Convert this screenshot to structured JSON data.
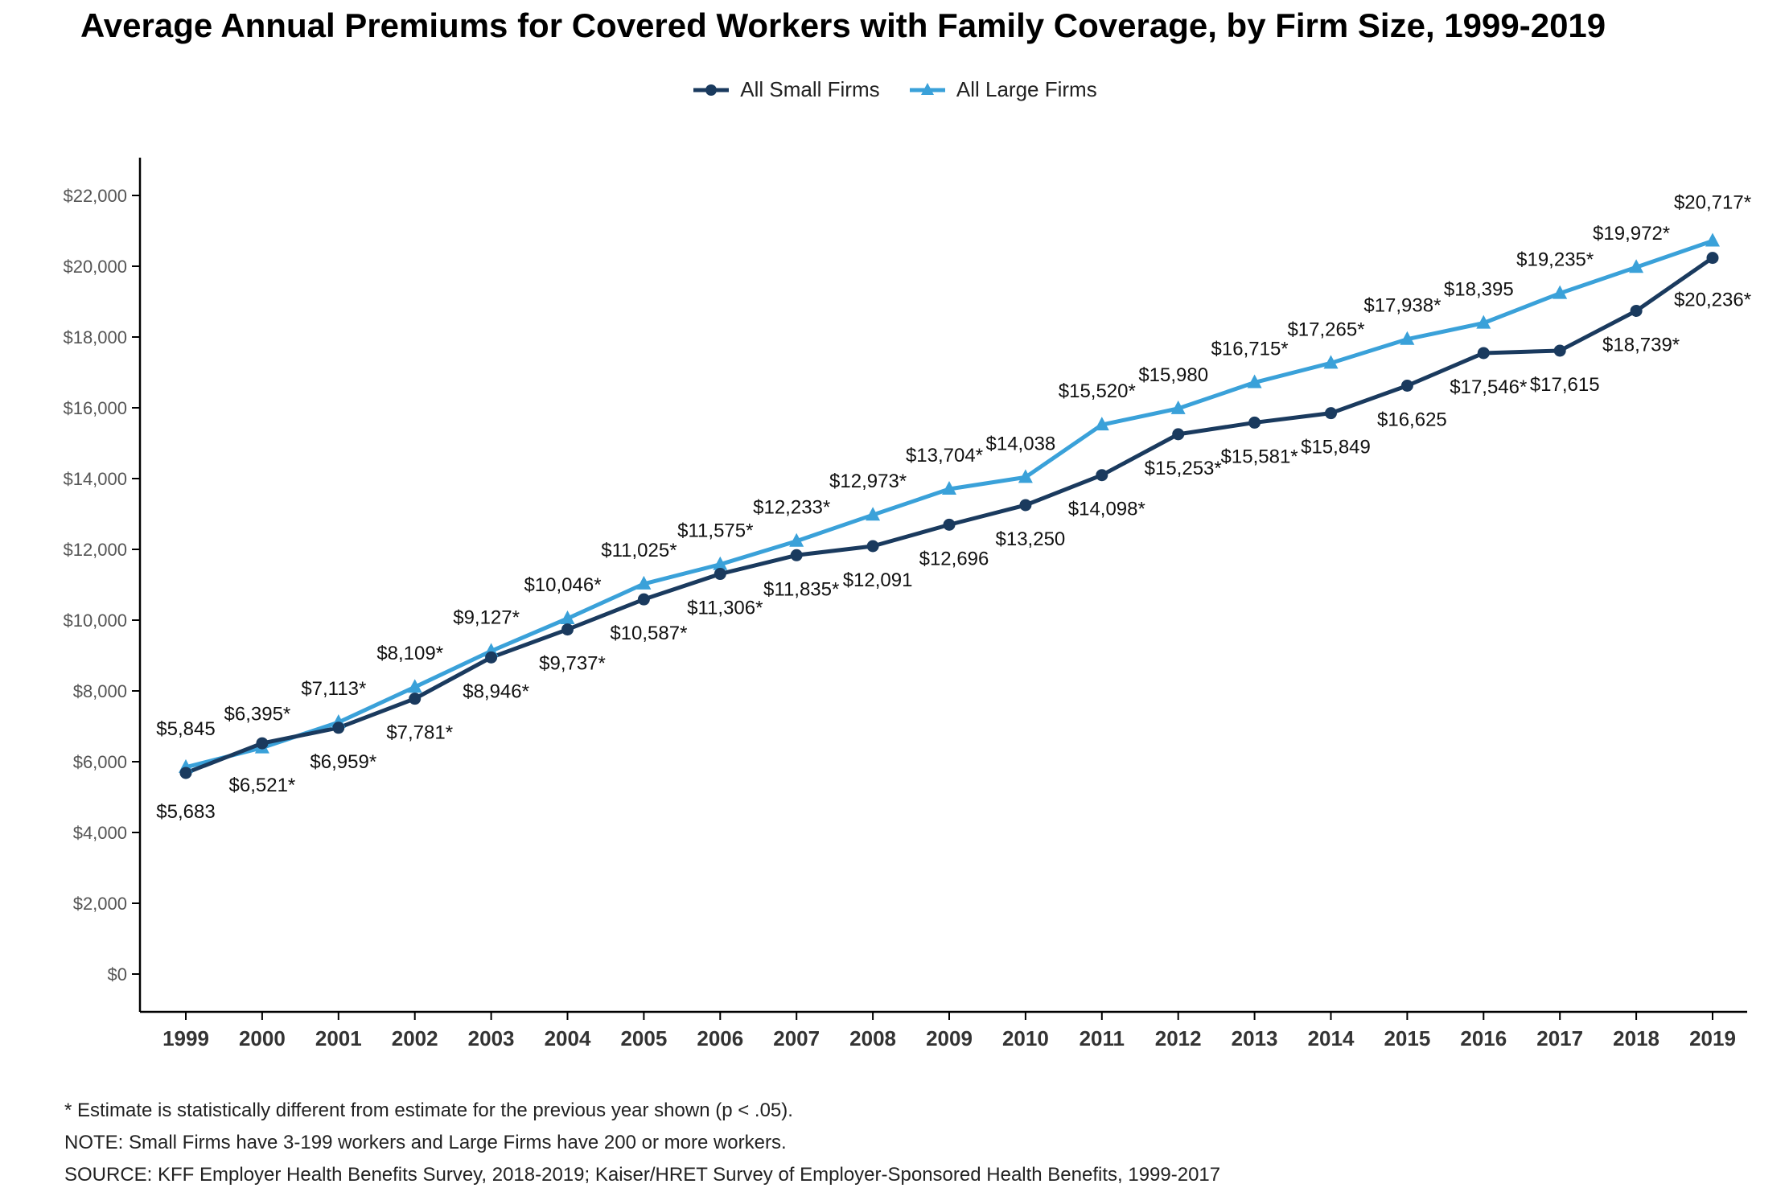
{
  "title": "Average Annual Premiums for Covered Workers with Family Coverage, by Firm Size, 1999-2019",
  "legend": {
    "small": "All Small Firms",
    "large": "All Large Firms"
  },
  "colors": {
    "small": "#1a3a5e",
    "large": "#3aa1d9",
    "axis": "#000000",
    "tick_text": "#555555"
  },
  "footnotes": {
    "asterisk": "* Estimate is statistically different from estimate for the previous year shown (p < .05).",
    "note": "NOTE: Small Firms have 3-199 workers and Large Firms have 200 or more workers.",
    "source": "SOURCE: KFF Employer Health Benefits Survey, 2018-2019; Kaiser/HRET Survey of Employer-Sponsored Health Benefits, 1999-2017"
  },
  "chart_data": {
    "type": "line",
    "title": "Average Annual Premiums for Covered Workers with Family Coverage, by Firm Size, 1999-2019",
    "xlabel": "",
    "ylabel": "",
    "ylim": [
      0,
      22000
    ],
    "yticks": [
      0,
      2000,
      4000,
      6000,
      8000,
      10000,
      12000,
      14000,
      16000,
      18000,
      20000,
      22000
    ],
    "ytick_labels": [
      "$0",
      "$2,000",
      "$4,000",
      "$6,000",
      "$8,000",
      "$10,000",
      "$12,000",
      "$14,000",
      "$16,000",
      "$18,000",
      "$20,000",
      "$22,000"
    ],
    "grid": false,
    "legend_position": "top-center",
    "categories": [
      "1999",
      "2000",
      "2001",
      "2002",
      "2003",
      "2004",
      "2005",
      "2006",
      "2007",
      "2008",
      "2009",
      "2010",
      "2011",
      "2012",
      "2013",
      "2014",
      "2015",
      "2016",
      "2017",
      "2018",
      "2019"
    ],
    "series": [
      {
        "name": "All Small Firms",
        "marker": "circle",
        "values": [
          5683,
          6521,
          6959,
          7781,
          8946,
          9737,
          10587,
          11306,
          11835,
          12091,
          12696,
          13250,
          14098,
          15253,
          15581,
          15849,
          16625,
          17546,
          17615,
          18739,
          20236
        ],
        "labels": [
          "$5,683",
          "$6,521*",
          "$6,959*",
          "$7,781*",
          "$8,946*",
          "$9,737*",
          "$10,587*",
          "$11,306*",
          "$11,835*",
          "$12,091",
          "$12,696",
          "$13,250",
          "$14,098*",
          "$15,253*",
          "$15,581*",
          "$15,849",
          "$16,625",
          "$17,546*",
          "$17,615",
          "$18,739*",
          "$20,236*"
        ]
      },
      {
        "name": "All Large Firms",
        "marker": "triangle",
        "values": [
          5845,
          6395,
          7113,
          8109,
          9127,
          10046,
          11025,
          11575,
          12233,
          12973,
          13704,
          14038,
          15520,
          15980,
          16715,
          17265,
          17938,
          18395,
          19235,
          19972,
          20717
        ],
        "labels": [
          "$5,845",
          "$6,395*",
          "$7,113*",
          "$8,109*",
          "$9,127*",
          "$10,046*",
          "$11,025*",
          "$11,575*",
          "$12,233*",
          "$12,973*",
          "$13,704*",
          "$14,038",
          "$15,520*",
          "$15,980",
          "$16,715*",
          "$17,265*",
          "$17,938*",
          "$18,395",
          "$19,235*",
          "$19,972*",
          "$20,717*"
        ]
      }
    ]
  }
}
